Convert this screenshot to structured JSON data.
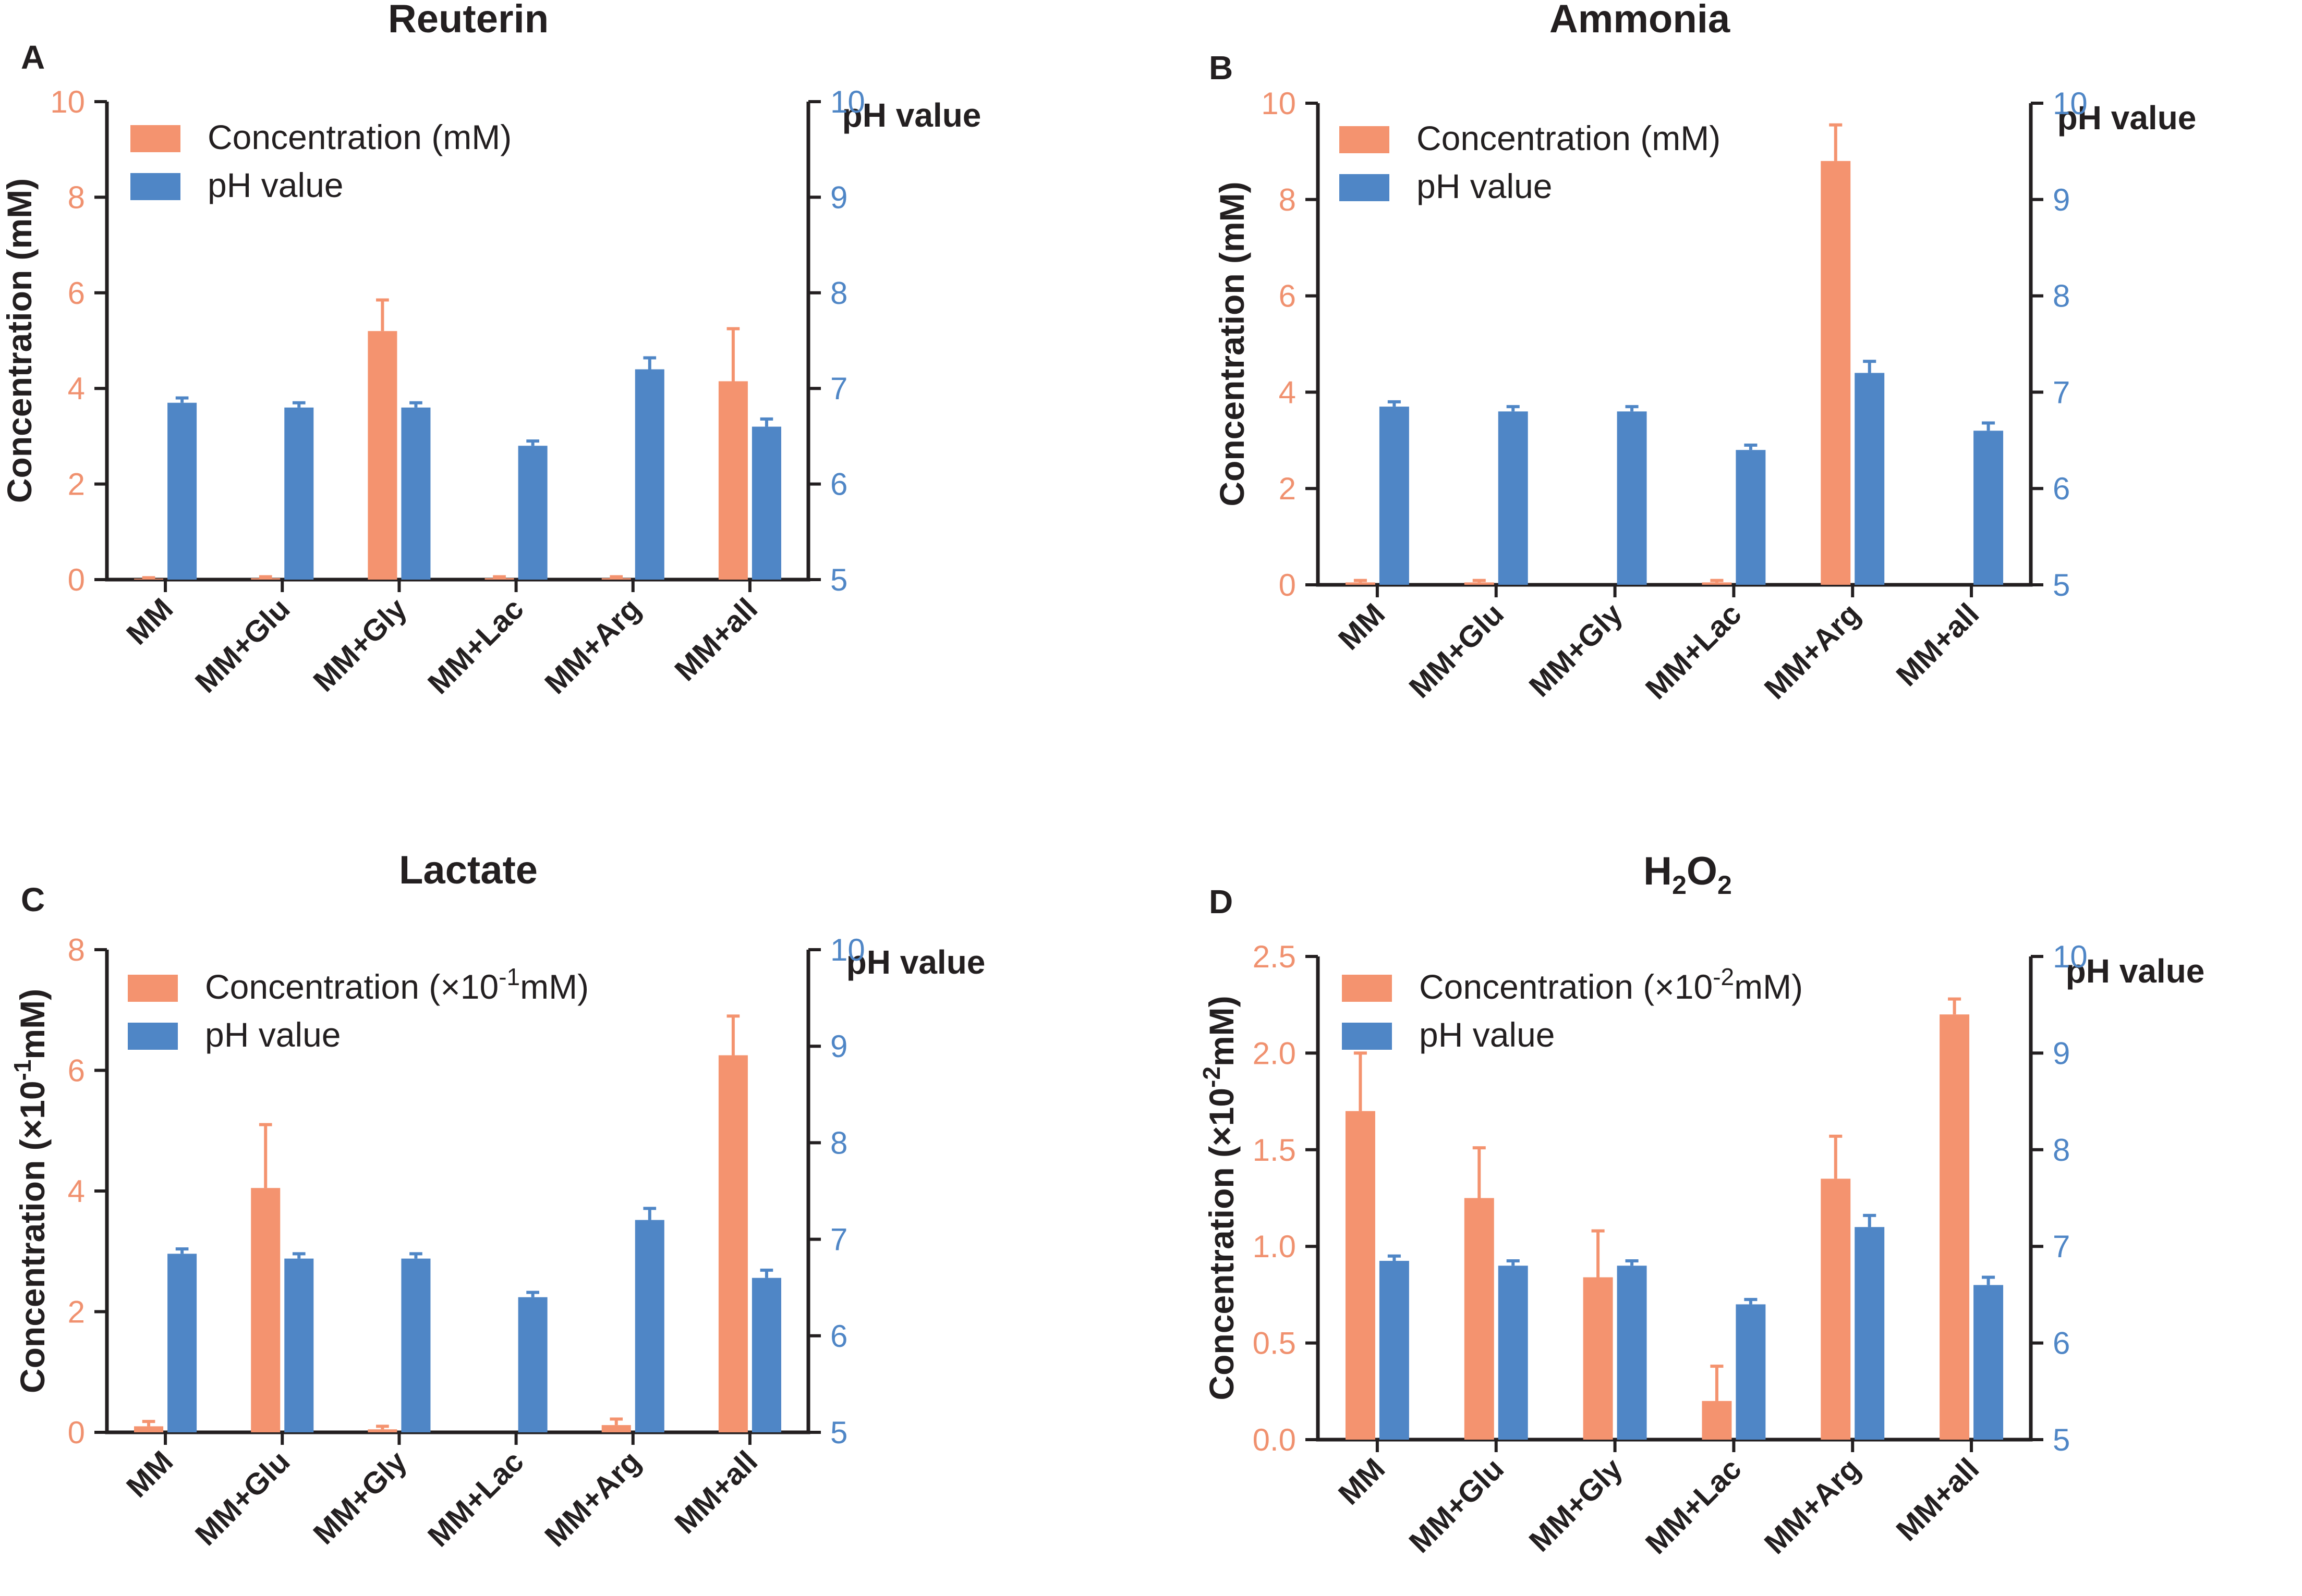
{
  "colors": {
    "concentration": "#f4936f",
    "ph": "#4f86c6",
    "axis": "#231f20",
    "left_tick_text": "#f0916f",
    "right_tick_text": "#4f86c6"
  },
  "chart_data": [
    {
      "panel": "A",
      "type": "bar",
      "title": "Reuterin",
      "title_base": "Reuterin",
      "title_sub": "",
      "title_after": "",
      "categories": [
        "MM",
        "MM+Glu",
        "MM+Gly",
        "MM+Lac",
        "MM+Arg",
        "MM+all"
      ],
      "ylabel_base": "Concentration (mM)",
      "ylabel_sup": "",
      "ylabel_after": "",
      "y2label": "pH value",
      "ylim": [
        0,
        10
      ],
      "yticks": [
        "0",
        "2",
        "4",
        "6",
        "8",
        "10"
      ],
      "ytick_values": [
        0,
        2,
        4,
        6,
        8,
        10
      ],
      "y2lim": [
        5,
        10
      ],
      "y2ticks": [
        "5",
        "6",
        "7",
        "8",
        "9",
        "10"
      ],
      "y2tick_values": [
        5,
        6,
        7,
        8,
        9,
        10
      ],
      "legend": {
        "conc_base": "Concentration (mM)",
        "conc_sup": "",
        "conc_after": "",
        "ph": "pH value"
      },
      "series": [
        {
          "name": "Concentration (mM)",
          "axis": "left",
          "values": [
            0.02,
            0.03,
            5.2,
            0.03,
            0.03,
            4.15
          ],
          "errors": [
            0.02,
            0.03,
            0.65,
            0.03,
            0.03,
            1.1
          ]
        },
        {
          "name": "pH value",
          "axis": "right",
          "values": [
            6.85,
            6.8,
            6.8,
            6.4,
            7.2,
            6.6
          ],
          "errors": [
            0.05,
            0.05,
            0.05,
            0.05,
            0.12,
            0.08
          ]
        }
      ]
    },
    {
      "panel": "B",
      "type": "bar",
      "title": "Ammonia",
      "title_base": "Ammonia",
      "title_sub": "",
      "title_after": "",
      "categories": [
        "MM",
        "MM+Glu",
        "MM+Gly",
        "MM+Lac",
        "MM+Arg",
        "MM+all"
      ],
      "ylabel_base": "Concentration (mM)",
      "ylabel_sup": "",
      "ylabel_after": "",
      "y2label": "pH value",
      "ylim": [
        0,
        10
      ],
      "yticks": [
        "0",
        "2",
        "4",
        "6",
        "8",
        "10"
      ],
      "ytick_values": [
        0,
        2,
        4,
        6,
        8,
        10
      ],
      "y2lim": [
        5,
        10
      ],
      "y2ticks": [
        "5",
        "6",
        "7",
        "8",
        "9",
        "10"
      ],
      "y2tick_values": [
        5,
        6,
        7,
        8,
        9,
        10
      ],
      "legend": {
        "conc_base": "Concentration (mM)",
        "conc_sup": "",
        "conc_after": "",
        "ph": "pH value"
      },
      "series": [
        {
          "name": "Concentration (mM)",
          "axis": "left",
          "values": [
            0.05,
            0.05,
            0,
            0.05,
            8.8,
            0
          ],
          "errors": [
            0.04,
            0.04,
            0,
            0.04,
            0.75,
            0
          ]
        },
        {
          "name": "pH value",
          "axis": "right",
          "values": [
            6.85,
            6.8,
            6.8,
            6.4,
            7.2,
            6.6
          ],
          "errors": [
            0.05,
            0.05,
            0.05,
            0.05,
            0.12,
            0.08
          ]
        }
      ]
    },
    {
      "panel": "C",
      "type": "bar",
      "title": "Lactate",
      "title_base": "Lactate",
      "title_sub": "",
      "title_after": "",
      "categories": [
        "MM",
        "MM+Glu",
        "MM+Gly",
        "MM+Lac",
        "MM+Arg",
        "MM+all"
      ],
      "ylabel_base": "Concentration (×10",
      "ylabel_sup": "-1",
      "ylabel_after": "mM)",
      "y2label": "pH value",
      "ylim": [
        0,
        8
      ],
      "yticks": [
        "0",
        "2",
        "4",
        "6",
        "8"
      ],
      "ytick_values": [
        0,
        2,
        4,
        6,
        8
      ],
      "y2lim": [
        5,
        10
      ],
      "y2ticks": [
        "5",
        "6",
        "7",
        "8",
        "9",
        "10"
      ],
      "y2tick_values": [
        5,
        6,
        7,
        8,
        9,
        10
      ],
      "legend": {
        "conc_base": "Concentration (×10",
        "conc_sup": "-1",
        "conc_after": "mM)",
        "ph": "pH value"
      },
      "series": [
        {
          "name": "Concentration (×10⁻¹mM)",
          "axis": "left",
          "values": [
            0.1,
            4.05,
            0.05,
            0,
            0.12,
            6.25
          ],
          "errors": [
            0.08,
            1.05,
            0.05,
            0,
            0.1,
            0.65
          ]
        },
        {
          "name": "pH value",
          "axis": "right",
          "values": [
            6.85,
            6.8,
            6.8,
            6.4,
            7.2,
            6.6
          ],
          "errors": [
            0.05,
            0.05,
            0.05,
            0.05,
            0.12,
            0.08
          ]
        }
      ]
    },
    {
      "panel": "D",
      "type": "bar",
      "title": "H2O2",
      "title_base": "H",
      "title_sub": "2",
      "title_mid": "O",
      "title_sub2": "2",
      "title_after": "",
      "categories": [
        "MM",
        "MM+Glu",
        "MM+Gly",
        "MM+Lac",
        "MM+Arg",
        "MM+all"
      ],
      "ylabel_base": "Concentration (×10",
      "ylabel_sup": "-2",
      "ylabel_after": "mM)",
      "y2label": "pH value",
      "ylim": [
        0,
        2.5
      ],
      "yticks": [
        "0.0",
        "0.5",
        "1.0",
        "1.5",
        "2.0",
        "2.5"
      ],
      "ytick_values": [
        0,
        0.5,
        1.0,
        1.5,
        2.0,
        2.5
      ],
      "y2lim": [
        5,
        10
      ],
      "y2ticks": [
        "5",
        "6",
        "7",
        "8",
        "9",
        "10"
      ],
      "y2tick_values": [
        5,
        6,
        7,
        8,
        9,
        10
      ],
      "legend": {
        "conc_base": "Concentration (×10",
        "conc_sup": "-2",
        "conc_after": "mM)",
        "ph": "pH value"
      },
      "series": [
        {
          "name": "Concentration (×10⁻²mM)",
          "axis": "left",
          "values": [
            1.7,
            1.25,
            0.84,
            0.2,
            1.35,
            2.2
          ],
          "errors": [
            0.3,
            0.26,
            0.24,
            0.18,
            0.22,
            0.08
          ]
        },
        {
          "name": "pH value",
          "axis": "right",
          "values": [
            6.85,
            6.8,
            6.8,
            6.4,
            7.2,
            6.6
          ],
          "errors": [
            0.05,
            0.05,
            0.05,
            0.05,
            0.12,
            0.08
          ]
        }
      ]
    }
  ]
}
